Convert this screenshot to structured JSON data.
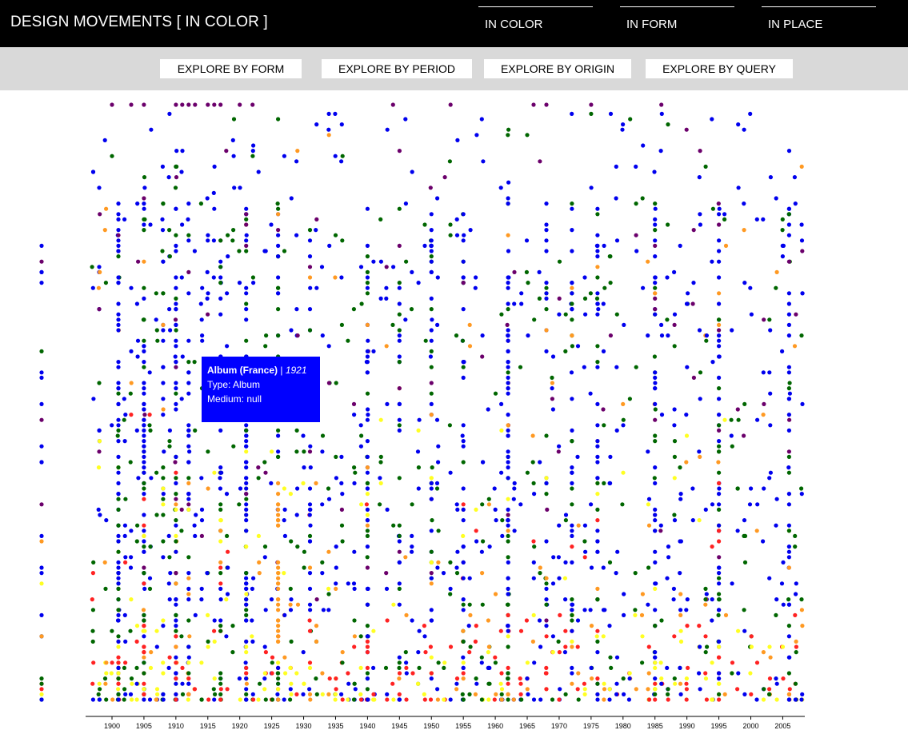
{
  "header": {
    "title_main": "DESIGN MOVEMENTS",
    "title_bracket": "[ IN COLOR ]",
    "tabs": [
      {
        "label": "IN COLOR"
      },
      {
        "label": "IN FORM"
      },
      {
        "label": "IN PLACE"
      }
    ]
  },
  "subnav": {
    "buttons": [
      {
        "label": "EXPLORE BY FORM"
      },
      {
        "label": "EXPLORE BY PERIOD"
      },
      {
        "label": "EXPLORE BY ORIGIN"
      },
      {
        "label": "EXPLORE BY QUERY"
      }
    ]
  },
  "tooltip": {
    "title": "Album (France)",
    "separator": " | ",
    "year": "1921",
    "type_line": "Type: Album",
    "medium_line": "Medium: null",
    "color": "#0000ff"
  },
  "chart_data": {
    "type": "scatter",
    "title": "",
    "xlabel": "",
    "ylabel": "",
    "x_ticks": [
      1900,
      1905,
      1910,
      1915,
      1920,
      1925,
      1930,
      1935,
      1940,
      1945,
      1950,
      1955,
      1960,
      1965,
      1970,
      1975,
      1980,
      1985,
      1990,
      1995,
      2000,
      2005
    ],
    "xlim": [
      1896,
      2009
    ],
    "grid": false,
    "legend": "none",
    "color_names": [
      "purple",
      "blue",
      "green",
      "orange",
      "yellow",
      "red"
    ],
    "colors": {
      "purple": "#6b006b",
      "blue": "#0000ee",
      "green": "#006600",
      "orange": "#ff9922",
      "yellow": "#ffff22",
      "red": "#ff2222"
    },
    "columns": [
      {
        "year": 1898,
        "count": 6
      },
      {
        "year": 1901,
        "count": 90
      },
      {
        "year": 1905,
        "count": 85
      },
      {
        "year": 1908,
        "count": 28
      },
      {
        "year": 1910,
        "count": 70
      },
      {
        "year": 1912,
        "count": 45
      },
      {
        "year": 1917,
        "count": 40
      },
      {
        "year": 1921,
        "count": 88
      },
      {
        "year": 1926,
        "count": 75
      },
      {
        "year": 1931,
        "count": 22
      },
      {
        "year": 1940,
        "count": 55
      },
      {
        "year": 1945,
        "count": 35
      },
      {
        "year": 1950,
        "count": 45
      },
      {
        "year": 1955,
        "count": 40
      },
      {
        "year": 1962,
        "count": 65
      },
      {
        "year": 1968,
        "count": 30
      },
      {
        "year": 1972,
        "count": 45
      },
      {
        "year": 1976,
        "count": 48
      },
      {
        "year": 1985,
        "count": 52
      },
      {
        "year": 1995,
        "count": 58
      },
      {
        "year": 2006,
        "count": 40
      }
    ]
  }
}
